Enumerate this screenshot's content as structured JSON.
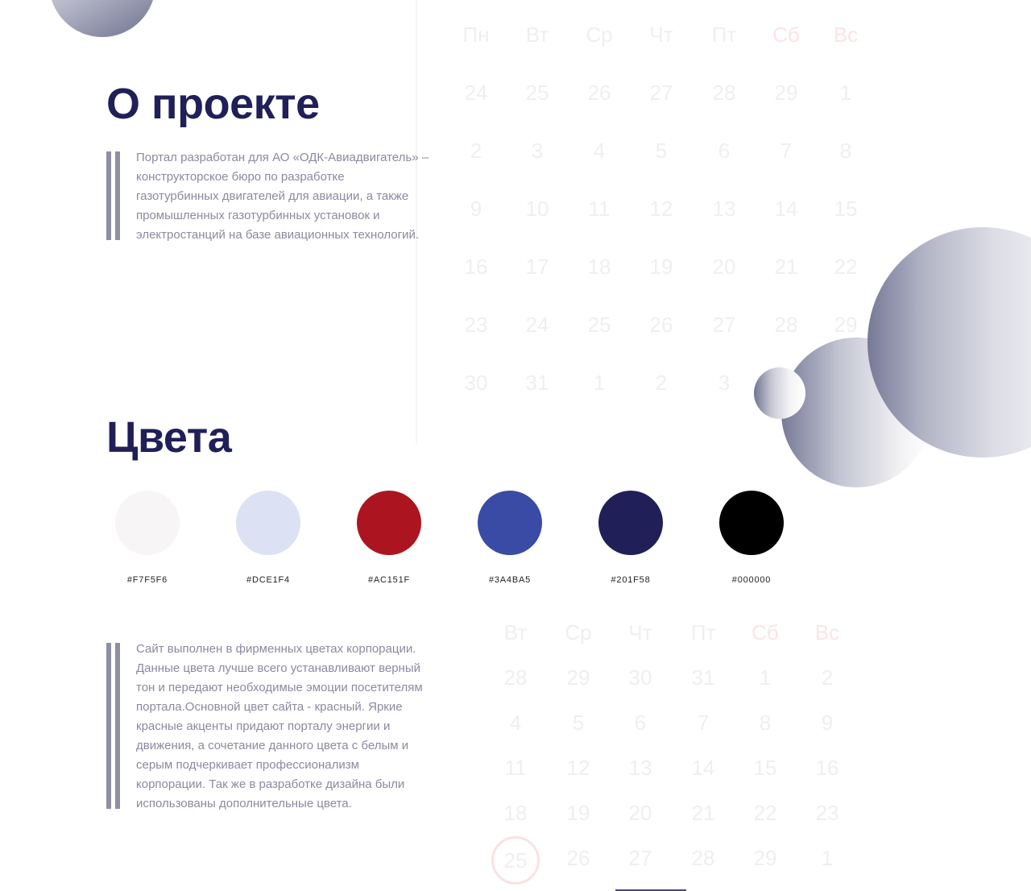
{
  "calendars": [
    {
      "weekdays": [
        "Вт",
        "Ср",
        "Чт",
        "Пт",
        "Сб",
        "Вс"
      ],
      "weekend_indices": [
        4,
        5
      ],
      "rows": [
        [
          "28",
          "29",
          "30",
          "31",
          "1",
          "2"
        ],
        [
          "4",
          "5",
          "6",
          "7",
          "8",
          "9"
        ],
        [
          "11",
          "12",
          "13",
          "14",
          "15",
          "16"
        ],
        [
          "18",
          "19",
          "20",
          "21",
          "22",
          "23"
        ],
        [
          "25",
          "26",
          "27",
          "28",
          "29",
          "1"
        ]
      ],
      "today": "25"
    },
    {
      "weekdays": [
        "Пн",
        "Вт",
        "Ср",
        "Чт",
        "Пт",
        "Сб",
        "Вс"
      ],
      "weekend_indices": [
        5,
        6
      ],
      "rows": [
        [
          "24",
          "25",
          "26",
          "27",
          "28",
          "29",
          "1"
        ],
        [
          "2",
          "3",
          "4",
          "5",
          "6",
          "7",
          "8"
        ],
        [
          "9",
          "10",
          "11",
          "12",
          "13",
          "14",
          "15"
        ],
        [
          "16",
          "17",
          "18",
          "19",
          "20",
          "21",
          "22"
        ],
        [
          "23",
          "24",
          "25",
          "26",
          "27",
          "28",
          "29"
        ],
        [
          "30",
          "31",
          "1",
          "2",
          "3"
        ]
      ]
    }
  ],
  "about": {
    "title": "О проекте",
    "text": "Портал разработан для АО «ОДК-Авиадвигатель» –\nконструкторское бюро по разработке\nгазотурбинных двигателей для авиации, а также\nпромышленных газотурбинных установок и\nэлектростанций на базе авиационных технологий."
  },
  "colors": {
    "title": "Цвета",
    "swatches": [
      {
        "hex": "#F7F5F6",
        "label": "#F7F5F6"
      },
      {
        "hex": "#DCE1F4",
        "label": "#DCE1F4"
      },
      {
        "hex": "#AC151F",
        "label": "#AC151F"
      },
      {
        "hex": "#3A4BA5",
        "label": "#3A4BA5"
      },
      {
        "hex": "#201F58",
        "label": "#201F58"
      },
      {
        "hex": "#000000",
        "label": "#000000"
      }
    ],
    "text": "Сайт выполнен в фирменных цветах корпорации.\nДанные цвета лучше всего устанавливают верный\nтон и передают необходимые эмоции посетителям\nпортала.Основной цвет сайта - красный. Яркие\nкрасные акценты придают порталу энергии и\nдвижения, а сочетание данного цвета с  белым и\nсерым подчеркивает профессионализм\nкорпорации. Так же в разработке дизайна были\nиспользованы дополнительные цвета."
  }
}
